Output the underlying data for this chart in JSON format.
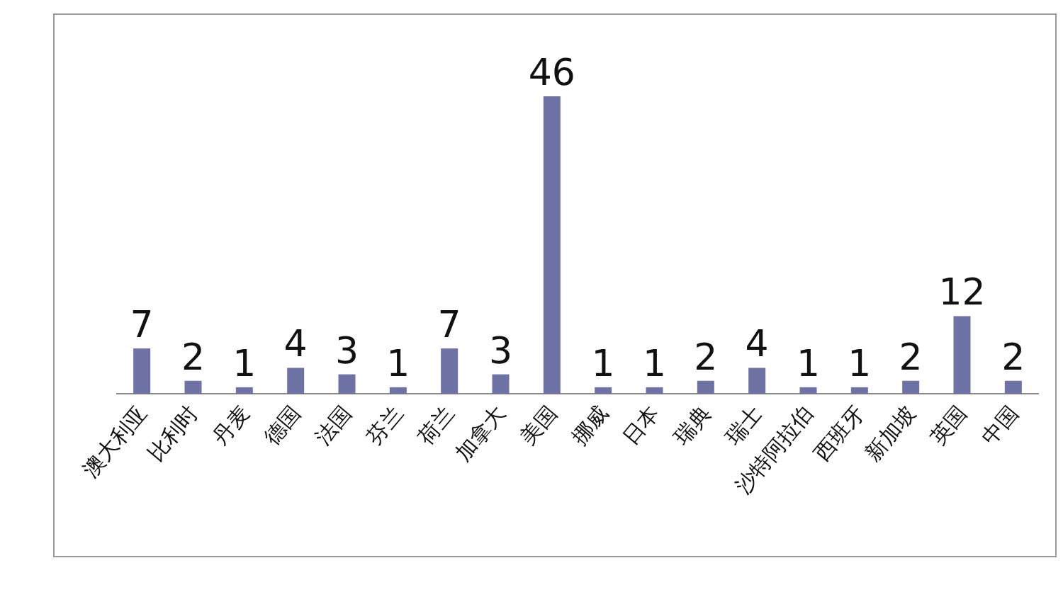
{
  "chart_data": {
    "type": "bar",
    "categories": [
      "澳大利亚",
      "比利时",
      "丹麦",
      "德国",
      "法国",
      "芬兰",
      "荷兰",
      "加拿大",
      "美国",
      "挪威",
      "日本",
      "瑞典",
      "瑞士",
      "沙特阿拉伯",
      "西班牙",
      "新加坡",
      "英国",
      "中国"
    ],
    "values": [
      7,
      2,
      1,
      4,
      3,
      1,
      7,
      3,
      46,
      1,
      1,
      2,
      4,
      1,
      1,
      2,
      12,
      2
    ],
    "color": "#6e72a4",
    "data_labels": true
  }
}
